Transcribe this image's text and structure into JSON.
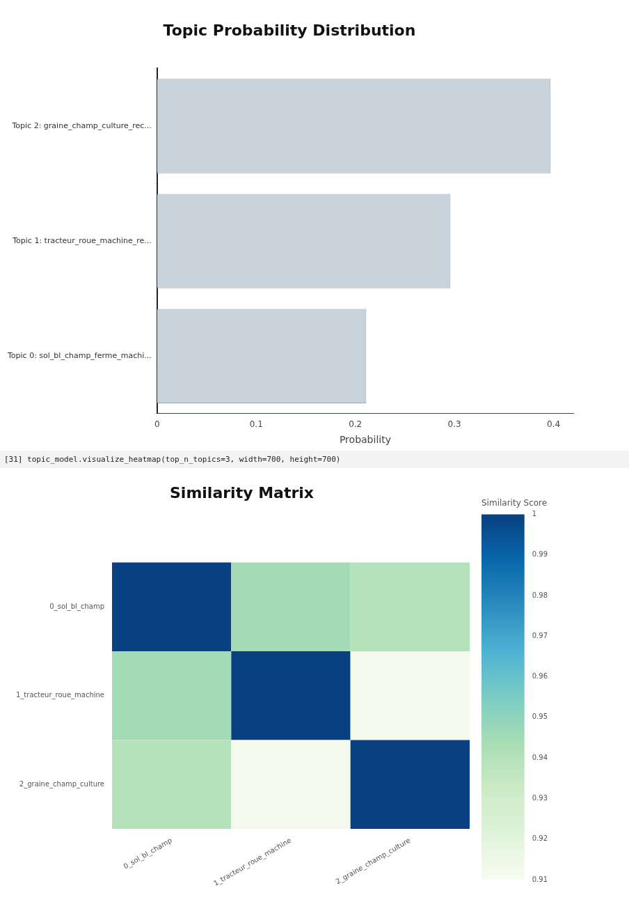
{
  "chart_data": [
    {
      "type": "bar",
      "title": "Topic Probability Distribution",
      "xlabel": "Probability",
      "orientation": "horizontal",
      "categories": [
        "Topic 2: graine_champ_culture_rec...",
        "Topic 1: tracteur_roue_machine_re...",
        "Topic 0: sol_bl_champ_ferme_machi..."
      ],
      "values": [
        0.397,
        0.296,
        0.211
      ],
      "color": "#c9d3db",
      "xlim": [
        0,
        0.42
      ],
      "xticks": [
        0,
        0.1,
        0.2,
        0.3,
        0.4
      ]
    },
    {
      "type": "heatmap",
      "title": "Similarity Matrix",
      "annotations": [
        "[31] topic_model.visualize_heatmap(top_n_topics=3, width=700, height=700)"
      ],
      "categories": [
        "0_sol_bl_champ",
        "1_tracteur_roue_machine",
        "2_graine_champ_culture"
      ],
      "y_categories": [
        "0_sol_bl_champ",
        "1_tracteur_roue_machine",
        "2_graine_champ_culture"
      ],
      "cells": [
        [
          1,
          0.945,
          0.94
        ],
        [
          0.945,
          1,
          0.912
        ],
        [
          0.94,
          0.912,
          1
        ]
      ],
      "clabel": "Similarity Score",
      "clim": [
        0.91,
        1
      ],
      "cticks": [
        0.91,
        0.92,
        0.93,
        0.94,
        0.95,
        0.96,
        0.97,
        0.98,
        0.99,
        1
      ]
    }
  ]
}
